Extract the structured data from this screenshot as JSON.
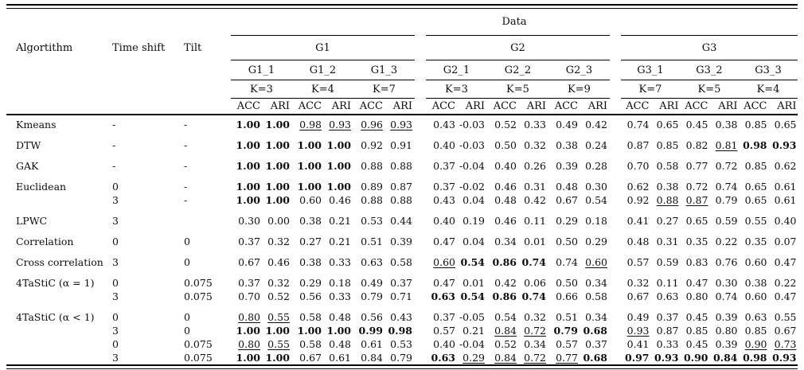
{
  "header": {
    "algorithm_col": "Algortithm",
    "time_shift_col": "Time shift",
    "tilt_col": "Tilt",
    "data_label": "Data",
    "acc_label": "ACC",
    "ari_label": "ARI",
    "groups": [
      {
        "label": "G1",
        "subcols": [
          {
            "name": "G1_1",
            "k": "K=3"
          },
          {
            "name": "G1_2",
            "k": "K=4"
          },
          {
            "name": "G1_3",
            "k": "K=7"
          }
        ]
      },
      {
        "label": "G2",
        "subcols": [
          {
            "name": "G2_1",
            "k": "K=3"
          },
          {
            "name": "G2_2",
            "k": "K=5"
          },
          {
            "name": "G2_3",
            "k": "K=9"
          }
        ]
      },
      {
        "label": "G3",
        "subcols": [
          {
            "name": "G3_1",
            "k": "K=7"
          },
          {
            "name": "G3_2",
            "k": "K=5"
          },
          {
            "name": "G3_3",
            "k": "K=4"
          }
        ]
      }
    ]
  },
  "rows": [
    {
      "algorithm": "Kmeans",
      "time_shift": "-",
      "tilt": "-",
      "group_first": true,
      "cells": [
        [
          "1.00",
          "1.00",
          "b",
          "b"
        ],
        [
          "0.98",
          "0.93",
          "u",
          "u"
        ],
        [
          "0.96",
          "0.93",
          "u",
          "u"
        ],
        [
          "0.43",
          "-0.03",
          "",
          ""
        ],
        [
          "0.52",
          "0.33",
          "",
          ""
        ],
        [
          "0.49",
          "0.42",
          "",
          ""
        ],
        [
          "0.74",
          "0.65",
          "",
          ""
        ],
        [
          "0.45",
          "0.38",
          "",
          ""
        ],
        [
          "0.85",
          "0.65",
          "",
          ""
        ]
      ]
    },
    {
      "algorithm": "DTW",
      "time_shift": "-",
      "tilt": "-",
      "group_first": true,
      "cells": [
        [
          "1.00",
          "1.00",
          "b",
          "b"
        ],
        [
          "1.00",
          "1.00",
          "b",
          "b"
        ],
        [
          "0.92",
          "0.91",
          "",
          ""
        ],
        [
          "0.40",
          "-0.03",
          "",
          ""
        ],
        [
          "0.50",
          "0.32",
          "",
          ""
        ],
        [
          "0.38",
          "0.24",
          "",
          ""
        ],
        [
          "0.87",
          "0.85",
          "",
          ""
        ],
        [
          "0.82",
          "0.81",
          "",
          "u"
        ],
        [
          "0.98",
          "0.93",
          "b",
          "b"
        ]
      ]
    },
    {
      "algorithm": "GAK",
      "time_shift": "-",
      "tilt": "-",
      "group_first": true,
      "cells": [
        [
          "1.00",
          "1.00",
          "b",
          "b"
        ],
        [
          "1.00",
          "1.00",
          "b",
          "b"
        ],
        [
          "0.88",
          "0.88",
          "",
          ""
        ],
        [
          "0.37",
          "-0.04",
          "",
          ""
        ],
        [
          "0.40",
          "0.26",
          "",
          ""
        ],
        [
          "0.39",
          "0.28",
          "",
          ""
        ],
        [
          "0.70",
          "0.58",
          "",
          ""
        ],
        [
          "0.77",
          "0.72",
          "",
          ""
        ],
        [
          "0.85",
          "0.62",
          "",
          ""
        ]
      ]
    },
    {
      "algorithm": "Euclidean",
      "time_shift": "0",
      "tilt": "-",
      "group_first": true,
      "cells": [
        [
          "1.00",
          "1.00",
          "b",
          "b"
        ],
        [
          "1.00",
          "1.00",
          "b",
          "b"
        ],
        [
          "0.89",
          "0.87",
          "",
          ""
        ],
        [
          "0.37",
          "-0.02",
          "",
          ""
        ],
        [
          "0.46",
          "0.31",
          "",
          ""
        ],
        [
          "0.48",
          "0.30",
          "",
          ""
        ],
        [
          "0.62",
          "0.38",
          "",
          ""
        ],
        [
          "0.72",
          "0.74",
          "",
          ""
        ],
        [
          "0.65",
          "0.61",
          "",
          ""
        ]
      ]
    },
    {
      "algorithm": "",
      "time_shift": "3",
      "tilt": "-",
      "group_first": false,
      "cells": [
        [
          "1.00",
          "1.00",
          "b",
          "b"
        ],
        [
          "0.60",
          "0.46",
          "",
          ""
        ],
        [
          "0.88",
          "0.88",
          "",
          ""
        ],
        [
          "0.43",
          "0.04",
          "",
          ""
        ],
        [
          "0.48",
          "0.42",
          "",
          ""
        ],
        [
          "0.67",
          "0.54",
          "",
          ""
        ],
        [
          "0.92",
          "0.88",
          "",
          "u"
        ],
        [
          "0.87",
          "0.79",
          "u",
          ""
        ],
        [
          "0.65",
          "0.61",
          "",
          ""
        ]
      ]
    },
    {
      "algorithm": "LPWC",
      "time_shift": "3",
      "tilt": "",
      "group_first": true,
      "cells": [
        [
          "0.30",
          "0.00",
          "",
          ""
        ],
        [
          "0.38",
          "0.21",
          "",
          ""
        ],
        [
          "0.53",
          "0.44",
          "",
          ""
        ],
        [
          "0.40",
          "0.19",
          "",
          ""
        ],
        [
          "0.46",
          "0.11",
          "",
          ""
        ],
        [
          "0.29",
          "0.18",
          "",
          ""
        ],
        [
          "0.41",
          "0.27",
          "",
          ""
        ],
        [
          "0.65",
          "0.59",
          "",
          ""
        ],
        [
          "0.55",
          "0.40",
          "",
          ""
        ]
      ]
    },
    {
      "algorithm": "Correlation",
      "time_shift": "0",
      "tilt": "0",
      "group_first": true,
      "cells": [
        [
          "0.37",
          "0.32",
          "",
          ""
        ],
        [
          "0.27",
          "0.21",
          "",
          ""
        ],
        [
          "0.51",
          "0.39",
          "",
          ""
        ],
        [
          "0.47",
          "0.04",
          "",
          ""
        ],
        [
          "0.34",
          "0.01",
          "",
          ""
        ],
        [
          "0.50",
          "0.29",
          "",
          ""
        ],
        [
          "0.48",
          "0.31",
          "",
          ""
        ],
        [
          "0.35",
          "0.22",
          "",
          ""
        ],
        [
          "0.35",
          "0.07",
          "",
          ""
        ]
      ]
    },
    {
      "algorithm": "Cross correlation",
      "time_shift": "3",
      "tilt": "0",
      "group_first": true,
      "cells": [
        [
          "0.67",
          "0.46",
          "",
          ""
        ],
        [
          "0.38",
          "0.33",
          "",
          ""
        ],
        [
          "0.63",
          "0.58",
          "",
          ""
        ],
        [
          "0.60",
          "0.54",
          "u",
          "b"
        ],
        [
          "0.86",
          "0.74",
          "b",
          "b"
        ],
        [
          "0.74",
          "0.60",
          "",
          "u"
        ],
        [
          "0.57",
          "0.59",
          "",
          ""
        ],
        [
          "0.83",
          "0.76",
          "",
          ""
        ],
        [
          "0.60",
          "0.47",
          "",
          ""
        ]
      ]
    },
    {
      "algorithm": "4TaStiC (α = 1)",
      "time_shift": "0",
      "tilt": "0.075",
      "group_first": true,
      "cells": [
        [
          "0.37",
          "0.32",
          "",
          ""
        ],
        [
          "0.29",
          "0.18",
          "",
          ""
        ],
        [
          "0.49",
          "0.37",
          "",
          ""
        ],
        [
          "0.47",
          "0.01",
          "",
          ""
        ],
        [
          "0.42",
          "0.06",
          "",
          ""
        ],
        [
          "0.50",
          "0.34",
          "",
          ""
        ],
        [
          "0.32",
          "0.11",
          "",
          ""
        ],
        [
          "0.47",
          "0.30",
          "",
          ""
        ],
        [
          "0.38",
          "0.22",
          "",
          ""
        ]
      ]
    },
    {
      "algorithm": "",
      "time_shift": "3",
      "tilt": "0.075",
      "group_first": false,
      "cells": [
        [
          "0.70",
          "0.52",
          "",
          ""
        ],
        [
          "0.56",
          "0.33",
          "",
          ""
        ],
        [
          "0.79",
          "0.71",
          "",
          ""
        ],
        [
          "0.63",
          "0.54",
          "b",
          "b"
        ],
        [
          "0.86",
          "0.74",
          "b",
          "b"
        ],
        [
          "0.66",
          "0.58",
          "",
          ""
        ],
        [
          "0.67",
          "0.63",
          "",
          ""
        ],
        [
          "0.80",
          "0.74",
          "",
          ""
        ],
        [
          "0.60",
          "0.47",
          "",
          ""
        ]
      ]
    },
    {
      "algorithm": "4TaStiC (α < 1)",
      "time_shift": "0",
      "tilt": "0",
      "group_first": true,
      "cells": [
        [
          "0.80",
          "0.55",
          "u",
          "u"
        ],
        [
          "0.58",
          "0.48",
          "",
          ""
        ],
        [
          "0.56",
          "0.43",
          "",
          ""
        ],
        [
          "0.37",
          "-0.05",
          "",
          ""
        ],
        [
          "0.54",
          "0.32",
          "",
          ""
        ],
        [
          "0.51",
          "0.34",
          "",
          ""
        ],
        [
          "0.49",
          "0.37",
          "",
          ""
        ],
        [
          "0.45",
          "0.39",
          "",
          ""
        ],
        [
          "0.63",
          "0.55",
          "",
          ""
        ]
      ]
    },
    {
      "algorithm": "",
      "time_shift": "3",
      "tilt": "0",
      "group_first": false,
      "cells": [
        [
          "1.00",
          "1.00",
          "b",
          "b"
        ],
        [
          "1.00",
          "1.00",
          "b",
          "b"
        ],
        [
          "0.99",
          "0.98",
          "b",
          "b"
        ],
        [
          "0.57",
          "0.21",
          "",
          ""
        ],
        [
          "0.84",
          "0.72",
          "u",
          "u"
        ],
        [
          "0.79",
          "0.68",
          "b",
          "b"
        ],
        [
          "0.93",
          "0.87",
          "u",
          ""
        ],
        [
          "0.85",
          "0.80",
          "",
          ""
        ],
        [
          "0.85",
          "0.67",
          "",
          ""
        ]
      ]
    },
    {
      "algorithm": "",
      "time_shift": "0",
      "tilt": "0.075",
      "group_first": false,
      "cells": [
        [
          "0.80",
          "0.55",
          "u",
          "u"
        ],
        [
          "0.58",
          "0.48",
          "",
          ""
        ],
        [
          "0.61",
          "0.53",
          "",
          ""
        ],
        [
          "0.40",
          "-0.04",
          "",
          ""
        ],
        [
          "0.52",
          "0.34",
          "",
          ""
        ],
        [
          "0.57",
          "0.37",
          "",
          ""
        ],
        [
          "0.41",
          "0.33",
          "",
          ""
        ],
        [
          "0.45",
          "0.39",
          "",
          ""
        ],
        [
          "0.90",
          "0.73",
          "u",
          "u"
        ]
      ]
    },
    {
      "algorithm": "",
      "time_shift": "3",
      "tilt": "0.075",
      "group_first": false,
      "cells": [
        [
          "1.00",
          "1.00",
          "b",
          "b"
        ],
        [
          "0.67",
          "0.61",
          "",
          ""
        ],
        [
          "0.84",
          "0.79",
          "",
          ""
        ],
        [
          "0.63",
          "0.29",
          "b",
          "u"
        ],
        [
          "0.84",
          "0.72",
          "u",
          "u"
        ],
        [
          "0.77",
          "0.68",
          "u",
          "b"
        ],
        [
          "0.97",
          "0.93",
          "b",
          "b"
        ],
        [
          "0.90",
          "0.84",
          "b",
          "b"
        ],
        [
          "0.98",
          "0.93",
          "b",
          "b"
        ]
      ]
    }
  ]
}
